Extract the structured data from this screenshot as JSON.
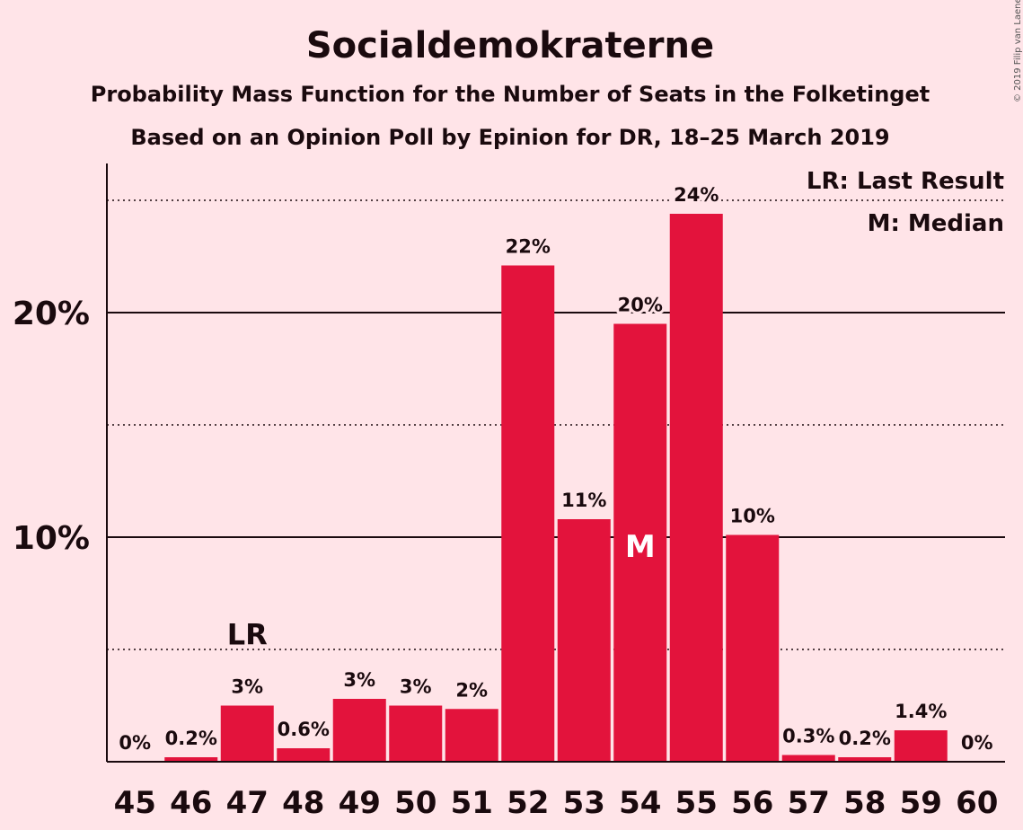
{
  "title": "Socialdemokraterne",
  "subtitle1": "Probability Mass Function for the Number of Seats in the Folketinget",
  "subtitle2": "Based on an Opinion Poll by Epinion for DR, 18–25 March 2019",
  "copyright": "© 2019 Filip van Laenen",
  "legend": {
    "last_result": "LR: Last Result",
    "median": "M: Median"
  },
  "colors": {
    "background": "#FFE4E8",
    "bar": "#E3133C",
    "text": "#1a0a0e"
  },
  "chart_data": {
    "type": "bar",
    "categories": [
      "45",
      "46",
      "47",
      "48",
      "49",
      "50",
      "51",
      "52",
      "53",
      "54",
      "55",
      "56",
      "57",
      "58",
      "59",
      "60"
    ],
    "values": [
      0,
      0.2,
      2.5,
      0.6,
      2.8,
      2.5,
      2.35,
      22.1,
      10.8,
      19.5,
      24.4,
      10.1,
      0.3,
      0.2,
      1.4,
      0
    ],
    "value_labels": [
      "0%",
      "0.2%",
      "3%",
      "0.6%",
      "3%",
      "3%",
      "2%",
      "22%",
      "11%",
      "20%",
      "24%",
      "10%",
      "0.3%",
      "0.2%",
      "1.4%",
      "0%"
    ],
    "ylim": [
      0,
      26.5
    ],
    "yticks": [
      10,
      20
    ],
    "ytick_labels": [
      "10%",
      "20%"
    ],
    "minor_gridlines": [
      5,
      15,
      25
    ],
    "markers": [
      {
        "category": "47",
        "label": "LR",
        "meaning": "Last Result"
      },
      {
        "category": "54",
        "label": "M",
        "meaning": "Median"
      }
    ],
    "legend_position": "top-right"
  }
}
